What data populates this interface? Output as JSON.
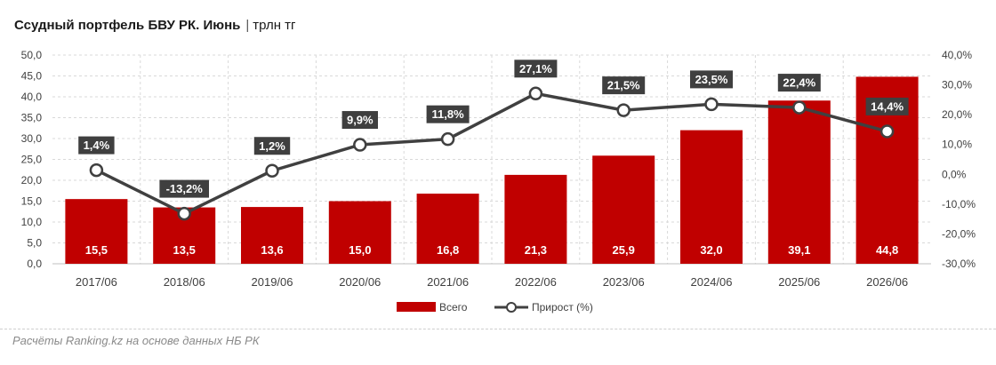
{
  "header": {
    "title": "Ссудный портфель БВУ РК. Июнь",
    "separator": "|",
    "unit": "трлн тг"
  },
  "footer": {
    "source": "Расчёты Ranking.kz на основе данных НБ РК"
  },
  "chart_data": {
    "type": "bar",
    "categories": [
      "2017/06",
      "2018/06",
      "2019/06",
      "2020/06",
      "2021/06",
      "2022/06",
      "2023/06",
      "2024/06",
      "2025/06",
      "2026/06"
    ],
    "series": [
      {
        "name": "Всего",
        "type": "bar",
        "axis": "left",
        "color": "#c00000",
        "values": [
          15.5,
          13.5,
          13.6,
          15.0,
          16.8,
          21.3,
          25.9,
          32.0,
          39.1,
          44.8
        ],
        "labels": [
          "15,5",
          "13,5",
          "13,6",
          "15,0",
          "16,8",
          "21,3",
          "25,9",
          "32,0",
          "39,1",
          "44,8"
        ]
      },
      {
        "name": "Прирост (%)",
        "type": "line",
        "axis": "right",
        "color": "#404040",
        "values": [
          1.4,
          -13.2,
          1.2,
          9.9,
          11.8,
          27.1,
          21.5,
          23.5,
          22.4,
          14.4
        ],
        "labels": [
          "1,4%",
          "-13,2%",
          "1,2%",
          "9,9%",
          "11,8%",
          "27,1%",
          "21,5%",
          "23,5%",
          "22,4%",
          "14,4%"
        ]
      }
    ],
    "y_left": {
      "min": 0,
      "max": 50,
      "ticks": [
        "0,0",
        "5,0",
        "10,0",
        "15,0",
        "20,0",
        "25,0",
        "30,0",
        "35,0",
        "40,0",
        "45,0",
        "50,0"
      ]
    },
    "y_right": {
      "min": -30,
      "max": 40,
      "ticks": [
        "-30,0%",
        "-20,0%",
        "-10,0%",
        "0,0%",
        "10,0%",
        "20,0%",
        "30,0%",
        "40,0%"
      ]
    },
    "grid": true,
    "legend": "bottom-center"
  }
}
